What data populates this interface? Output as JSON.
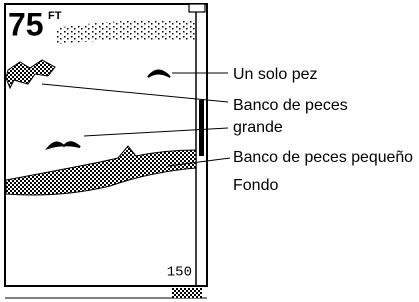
{
  "screen": {
    "depth": "75",
    "unit": "FT",
    "range": "150"
  },
  "callouts": [
    {
      "lines": [
        "Un solo pez"
      ]
    },
    {
      "lines": [
        "Banco de peces",
        "grande"
      ]
    },
    {
      "lines": [
        "Banco de peces pequeño"
      ]
    },
    {
      "lines": [
        "Fondo"
      ]
    }
  ]
}
